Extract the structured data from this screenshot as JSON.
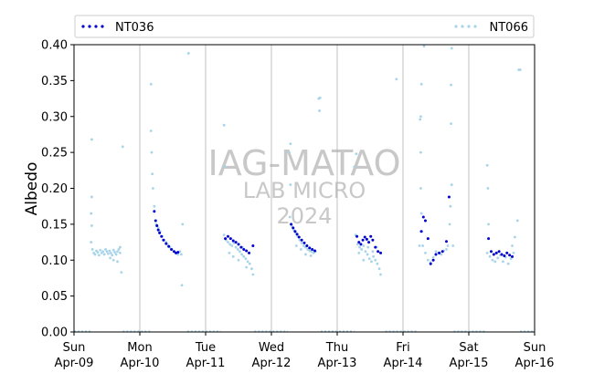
{
  "watermark": {
    "line1": "IAG-MATAO",
    "line2": "LAB MICRO",
    "line3": "2024"
  },
  "colors": {
    "nt036": "#0000cc",
    "nt066": "#a8d4ea",
    "grid": "#b0b0b0",
    "axis": "#000000"
  },
  "chart_data": {
    "type": "scatter",
    "ylabel": "Albedo",
    "xlabel": "",
    "ylim": [
      0,
      0.4
    ],
    "yticks": [
      "0.00",
      "0.05",
      "0.10",
      "0.15",
      "0.20",
      "0.25",
      "0.30",
      "0.35",
      "0.40"
    ],
    "xrange_days": [
      0,
      7
    ],
    "xticks": [
      {
        "day": "Sun",
        "date": "Apr-09"
      },
      {
        "day": "Mon",
        "date": "Apr-10"
      },
      {
        "day": "Tue",
        "date": "Apr-11"
      },
      {
        "day": "Wed",
        "date": "Apr-12"
      },
      {
        "day": "Thu",
        "date": "Apr-13"
      },
      {
        "day": "Fri",
        "date": "Apr-14"
      },
      {
        "day": "Sat",
        "date": "Apr-15"
      },
      {
        "day": "Sun",
        "date": "Apr-16"
      }
    ],
    "legend": {
      "placement": "top",
      "entries": [
        "NT036",
        "NT066"
      ]
    },
    "series": [
      {
        "name": "NT036",
        "points": [
          [
            1.22,
            0.168
          ],
          [
            1.24,
            0.155
          ],
          [
            1.26,
            0.148
          ],
          [
            1.28,
            0.142
          ],
          [
            1.3,
            0.138
          ],
          [
            1.33,
            0.133
          ],
          [
            1.36,
            0.128
          ],
          [
            1.4,
            0.123
          ],
          [
            1.44,
            0.119
          ],
          [
            1.48,
            0.115
          ],
          [
            1.52,
            0.112
          ],
          [
            1.55,
            0.11
          ],
          [
            1.58,
            0.111
          ],
          [
            2.3,
            0.13
          ],
          [
            2.34,
            0.133
          ],
          [
            2.38,
            0.13
          ],
          [
            2.42,
            0.127
          ],
          [
            2.46,
            0.125
          ],
          [
            2.5,
            0.122
          ],
          [
            2.54,
            0.118
          ],
          [
            2.58,
            0.115
          ],
          [
            2.62,
            0.113
          ],
          [
            2.66,
            0.11
          ],
          [
            2.72,
            0.12
          ],
          [
            3.3,
            0.15
          ],
          [
            3.33,
            0.145
          ],
          [
            3.36,
            0.14
          ],
          [
            3.39,
            0.136
          ],
          [
            3.42,
            0.132
          ],
          [
            3.46,
            0.128
          ],
          [
            3.5,
            0.124
          ],
          [
            3.54,
            0.12
          ],
          [
            3.58,
            0.117
          ],
          [
            3.62,
            0.115
          ],
          [
            3.66,
            0.113
          ],
          [
            4.3,
            0.133
          ],
          [
            4.33,
            0.125
          ],
          [
            4.36,
            0.122
          ],
          [
            4.39,
            0.128
          ],
          [
            4.42,
            0.132
          ],
          [
            4.45,
            0.129
          ],
          [
            4.48,
            0.125
          ],
          [
            4.51,
            0.133
          ],
          [
            4.54,
            0.128
          ],
          [
            4.58,
            0.118
          ],
          [
            4.62,
            0.112
          ],
          [
            4.66,
            0.11
          ],
          [
            5.28,
            0.14
          ],
          [
            5.31,
            0.16
          ],
          [
            5.34,
            0.155
          ],
          [
            5.38,
            0.13
          ],
          [
            5.42,
            0.095
          ],
          [
            5.46,
            0.1
          ],
          [
            5.5,
            0.108
          ],
          [
            5.55,
            0.11
          ],
          [
            5.6,
            0.112
          ],
          [
            5.66,
            0.126
          ],
          [
            5.7,
            0.188
          ],
          [
            6.3,
            0.13
          ],
          [
            6.34,
            0.112
          ],
          [
            6.38,
            0.108
          ],
          [
            6.42,
            0.11
          ],
          [
            6.46,
            0.112
          ],
          [
            6.5,
            0.108
          ],
          [
            6.54,
            0.106
          ],
          [
            6.58,
            0.11
          ],
          [
            6.62,
            0.107
          ],
          [
            6.66,
            0.105
          ]
        ]
      },
      {
        "name": "NT066",
        "points": [
          [
            0.28,
            0.115
          ],
          [
            0.3,
            0.11
          ],
          [
            0.32,
            0.108
          ],
          [
            0.34,
            0.113
          ],
          [
            0.36,
            0.111
          ],
          [
            0.38,
            0.107
          ],
          [
            0.4,
            0.114
          ],
          [
            0.42,
            0.11
          ],
          [
            0.44,
            0.112
          ],
          [
            0.46,
            0.108
          ],
          [
            0.48,
            0.115
          ],
          [
            0.5,
            0.112
          ],
          [
            0.52,
            0.109
          ],
          [
            0.54,
            0.113
          ],
          [
            0.56,
            0.11
          ],
          [
            0.58,
            0.107
          ],
          [
            0.6,
            0.114
          ],
          [
            0.62,
            0.111
          ],
          [
            0.64,
            0.108
          ],
          [
            0.66,
            0.112
          ],
          [
            0.68,
            0.115
          ],
          [
            0.7,
            0.11
          ],
          [
            0.26,
            0.125
          ],
          [
            0.27,
            0.148
          ],
          [
            0.26,
            0.165
          ],
          [
            0.27,
            0.188
          ],
          [
            0.27,
            0.268
          ],
          [
            0.55,
            0.103
          ],
          [
            0.6,
            0.1
          ],
          [
            0.66,
            0.098
          ],
          [
            0.72,
            0.083
          ],
          [
            0.74,
            0.258
          ],
          [
            0.7,
            0.118
          ],
          [
            1.22,
            0.175
          ],
          [
            1.2,
            0.2
          ],
          [
            1.19,
            0.22
          ],
          [
            1.18,
            0.25
          ],
          [
            1.17,
            0.28
          ],
          [
            1.17,
            0.345
          ],
          [
            1.25,
            0.15
          ],
          [
            1.28,
            0.145
          ],
          [
            1.31,
            0.14
          ],
          [
            1.34,
            0.133
          ],
          [
            1.37,
            0.128
          ],
          [
            1.4,
            0.125
          ],
          [
            1.43,
            0.121
          ],
          [
            1.46,
            0.118
          ],
          [
            1.49,
            0.115
          ],
          [
            1.52,
            0.112
          ],
          [
            1.55,
            0.11
          ],
          [
            1.58,
            0.108
          ],
          [
            1.61,
            0.112
          ],
          [
            1.63,
            0.108
          ],
          [
            1.65,
            0.15
          ],
          [
            1.64,
            0.065
          ],
          [
            1.74,
            0.388
          ],
          [
            2.28,
            0.135
          ],
          [
            2.31,
            0.128
          ],
          [
            2.34,
            0.125
          ],
          [
            2.37,
            0.122
          ],
          [
            2.4,
            0.12
          ],
          [
            2.43,
            0.124
          ],
          [
            2.46,
            0.118
          ],
          [
            2.49,
            0.115
          ],
          [
            2.52,
            0.112
          ],
          [
            2.55,
            0.108
          ],
          [
            2.58,
            0.105
          ],
          [
            2.61,
            0.102
          ],
          [
            2.64,
            0.098
          ],
          [
            2.67,
            0.095
          ],
          [
            2.7,
            0.088
          ],
          [
            2.72,
            0.08
          ],
          [
            2.28,
            0.288
          ],
          [
            2.3,
            0.23
          ],
          [
            2.36,
            0.11
          ],
          [
            2.42,
            0.105
          ],
          [
            2.5,
            0.1
          ],
          [
            2.56,
            0.118
          ],
          [
            2.62,
            0.09
          ],
          [
            3.28,
            0.16
          ],
          [
            3.31,
            0.148
          ],
          [
            3.34,
            0.142
          ],
          [
            3.37,
            0.138
          ],
          [
            3.4,
            0.133
          ],
          [
            3.43,
            0.128
          ],
          [
            3.46,
            0.124
          ],
          [
            3.49,
            0.12
          ],
          [
            3.52,
            0.118
          ],
          [
            3.55,
            0.115
          ],
          [
            3.58,
            0.113
          ],
          [
            3.61,
            0.112
          ],
          [
            3.64,
            0.11
          ],
          [
            3.67,
            0.112
          ],
          [
            3.29,
            0.205
          ],
          [
            3.27,
            0.25
          ],
          [
            3.29,
            0.262
          ],
          [
            3.38,
            0.12
          ],
          [
            3.45,
            0.115
          ],
          [
            3.52,
            0.108
          ],
          [
            3.6,
            0.106
          ],
          [
            4.28,
            0.135
          ],
          [
            4.31,
            0.122
          ],
          [
            4.34,
            0.118
          ],
          [
            4.37,
            0.115
          ],
          [
            4.4,
            0.12
          ],
          [
            4.43,
            0.112
          ],
          [
            4.46,
            0.108
          ],
          [
            4.49,
            0.102
          ],
          [
            4.52,
            0.098
          ],
          [
            4.55,
            0.105
          ],
          [
            4.58,
            0.1
          ],
          [
            4.61,
            0.095
          ],
          [
            4.64,
            0.088
          ],
          [
            4.66,
            0.08
          ],
          [
            4.29,
            0.248
          ],
          [
            4.26,
            0.23
          ],
          [
            4.33,
            0.11
          ],
          [
            4.4,
            0.1
          ],
          [
            4.47,
            0.118
          ],
          [
            4.54,
            0.112
          ],
          [
            4.6,
            0.118
          ],
          [
            4.9,
            0.352
          ],
          [
            3.72,
            0.325
          ],
          [
            3.73,
            0.308
          ],
          [
            3.74,
            0.326
          ],
          [
            5.25,
            0.12
          ],
          [
            5.27,
            0.14
          ],
          [
            5.28,
            0.165
          ],
          [
            5.27,
            0.2
          ],
          [
            5.27,
            0.25
          ],
          [
            5.26,
            0.296
          ],
          [
            5.27,
            0.3
          ],
          [
            5.28,
            0.345
          ],
          [
            5.32,
            0.398
          ],
          [
            5.3,
            0.12
          ],
          [
            5.34,
            0.11
          ],
          [
            5.38,
            0.1
          ],
          [
            5.42,
            0.097
          ],
          [
            5.46,
            0.104
          ],
          [
            5.5,
            0.112
          ],
          [
            5.54,
            0.11
          ],
          [
            5.58,
            0.108
          ],
          [
            5.62,
            0.113
          ],
          [
            5.66,
            0.115
          ],
          [
            5.68,
            0.12
          ],
          [
            5.71,
            0.15
          ],
          [
            5.72,
            0.175
          ],
          [
            5.74,
            0.205
          ],
          [
            5.73,
            0.29
          ],
          [
            5.73,
            0.344
          ],
          [
            5.74,
            0.395
          ],
          [
            5.76,
            0.12
          ],
          [
            6.28,
            0.11
          ],
          [
            6.3,
            0.15
          ],
          [
            6.29,
            0.2
          ],
          [
            6.28,
            0.232
          ],
          [
            6.32,
            0.105
          ],
          [
            6.36,
            0.1
          ],
          [
            6.4,
            0.098
          ],
          [
            6.44,
            0.103
          ],
          [
            6.48,
            0.107
          ],
          [
            6.52,
            0.098
          ],
          [
            6.56,
            0.104
          ],
          [
            6.6,
            0.095
          ],
          [
            6.64,
            0.102
          ],
          [
            6.66,
            0.12
          ],
          [
            6.68,
            0.11
          ],
          [
            6.7,
            0.132
          ],
          [
            6.74,
            0.155
          ],
          [
            6.76,
            0.365
          ],
          [
            6.78,
            0.365
          ]
        ]
      }
    ],
    "zero_segments": [
      [
        0.0,
        0.27
      ],
      [
        0.74,
        1.18
      ],
      [
        1.72,
        2.23
      ],
      [
        2.74,
        3.25
      ],
      [
        3.75,
        4.26
      ],
      [
        4.73,
        5.23
      ],
      [
        5.77,
        6.26
      ],
      [
        6.78,
        7.0
      ]
    ],
    "grid_x_days": [
      1,
      2,
      3,
      4,
      5,
      6
    ]
  }
}
